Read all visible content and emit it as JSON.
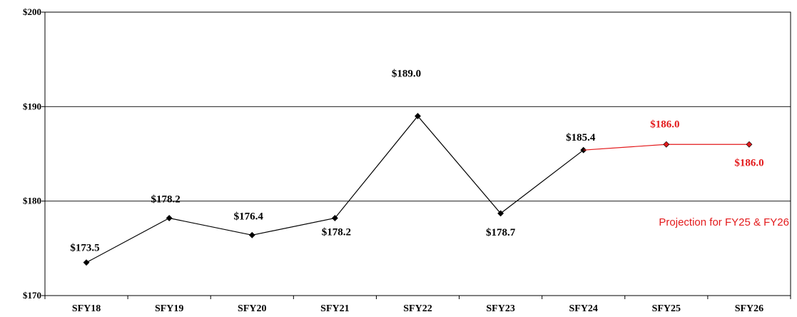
{
  "chart_data": {
    "type": "line",
    "categories": [
      "SFY18",
      "SFY19",
      "SFY20",
      "SFY21",
      "SFY22",
      "SFY23",
      "SFY24",
      "SFY25",
      "SFY26"
    ],
    "ylim": [
      170,
      200
    ],
    "yticks": [
      170,
      180,
      190,
      200
    ],
    "ytick_labels": [
      "$170",
      "$180",
      "$190",
      "$200"
    ],
    "grid": true,
    "series": [
      {
        "role": "actual",
        "color": "#000000",
        "values": [
          173.5,
          178.2,
          176.4,
          178.2,
          189.0,
          178.7,
          185.4,
          null,
          null
        ],
        "labels": [
          "$173.5",
          "$178.2",
          "$176.4",
          "$178.2",
          "$189.0",
          "$178.7",
          "$185.4",
          null,
          null
        ]
      },
      {
        "role": "projection",
        "color": "#e31a1c",
        "values": [
          null,
          null,
          null,
          null,
          null,
          null,
          185.4,
          186.0,
          186.0
        ],
        "labels": [
          null,
          null,
          null,
          null,
          null,
          null,
          null,
          "$186.0",
          "$186.0"
        ]
      }
    ],
    "annotation": {
      "text": "Projection for FY25 & FY26",
      "color": "#e31a1c"
    }
  }
}
